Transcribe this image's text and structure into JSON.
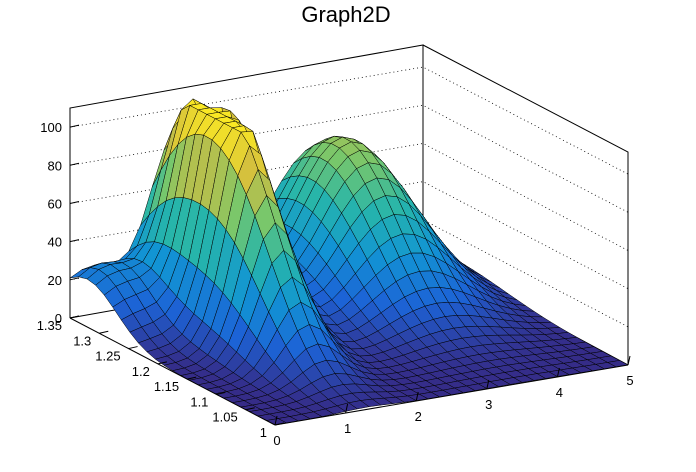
{
  "chart_data": {
    "type": "surface",
    "title": "Graph2D",
    "xlabel": "",
    "ylabel": "",
    "zlabel": "",
    "xlim": [
      0,
      5
    ],
    "ylim": [
      1,
      1.35
    ],
    "zlim": [
      0,
      110
    ],
    "x_ticks": [
      "0",
      "1",
      "2",
      "3",
      "4",
      "5"
    ],
    "y_ticks": [
      "1",
      "1.05",
      "1.1",
      "1.15",
      "1.2",
      "1.25",
      "1.3",
      "1.35"
    ],
    "z_ticks": [
      "0",
      "20",
      "40",
      "60",
      "80",
      "100"
    ],
    "grid": true,
    "colormap": "parula",
    "peaks": [
      {
        "x": 1.5,
        "y": 1.3,
        "z": 100
      },
      {
        "x": 3.5,
        "y": 1.3,
        "z": 80
      },
      {
        "x": 1.3,
        "y": 1.2,
        "z": 70
      }
    ]
  }
}
